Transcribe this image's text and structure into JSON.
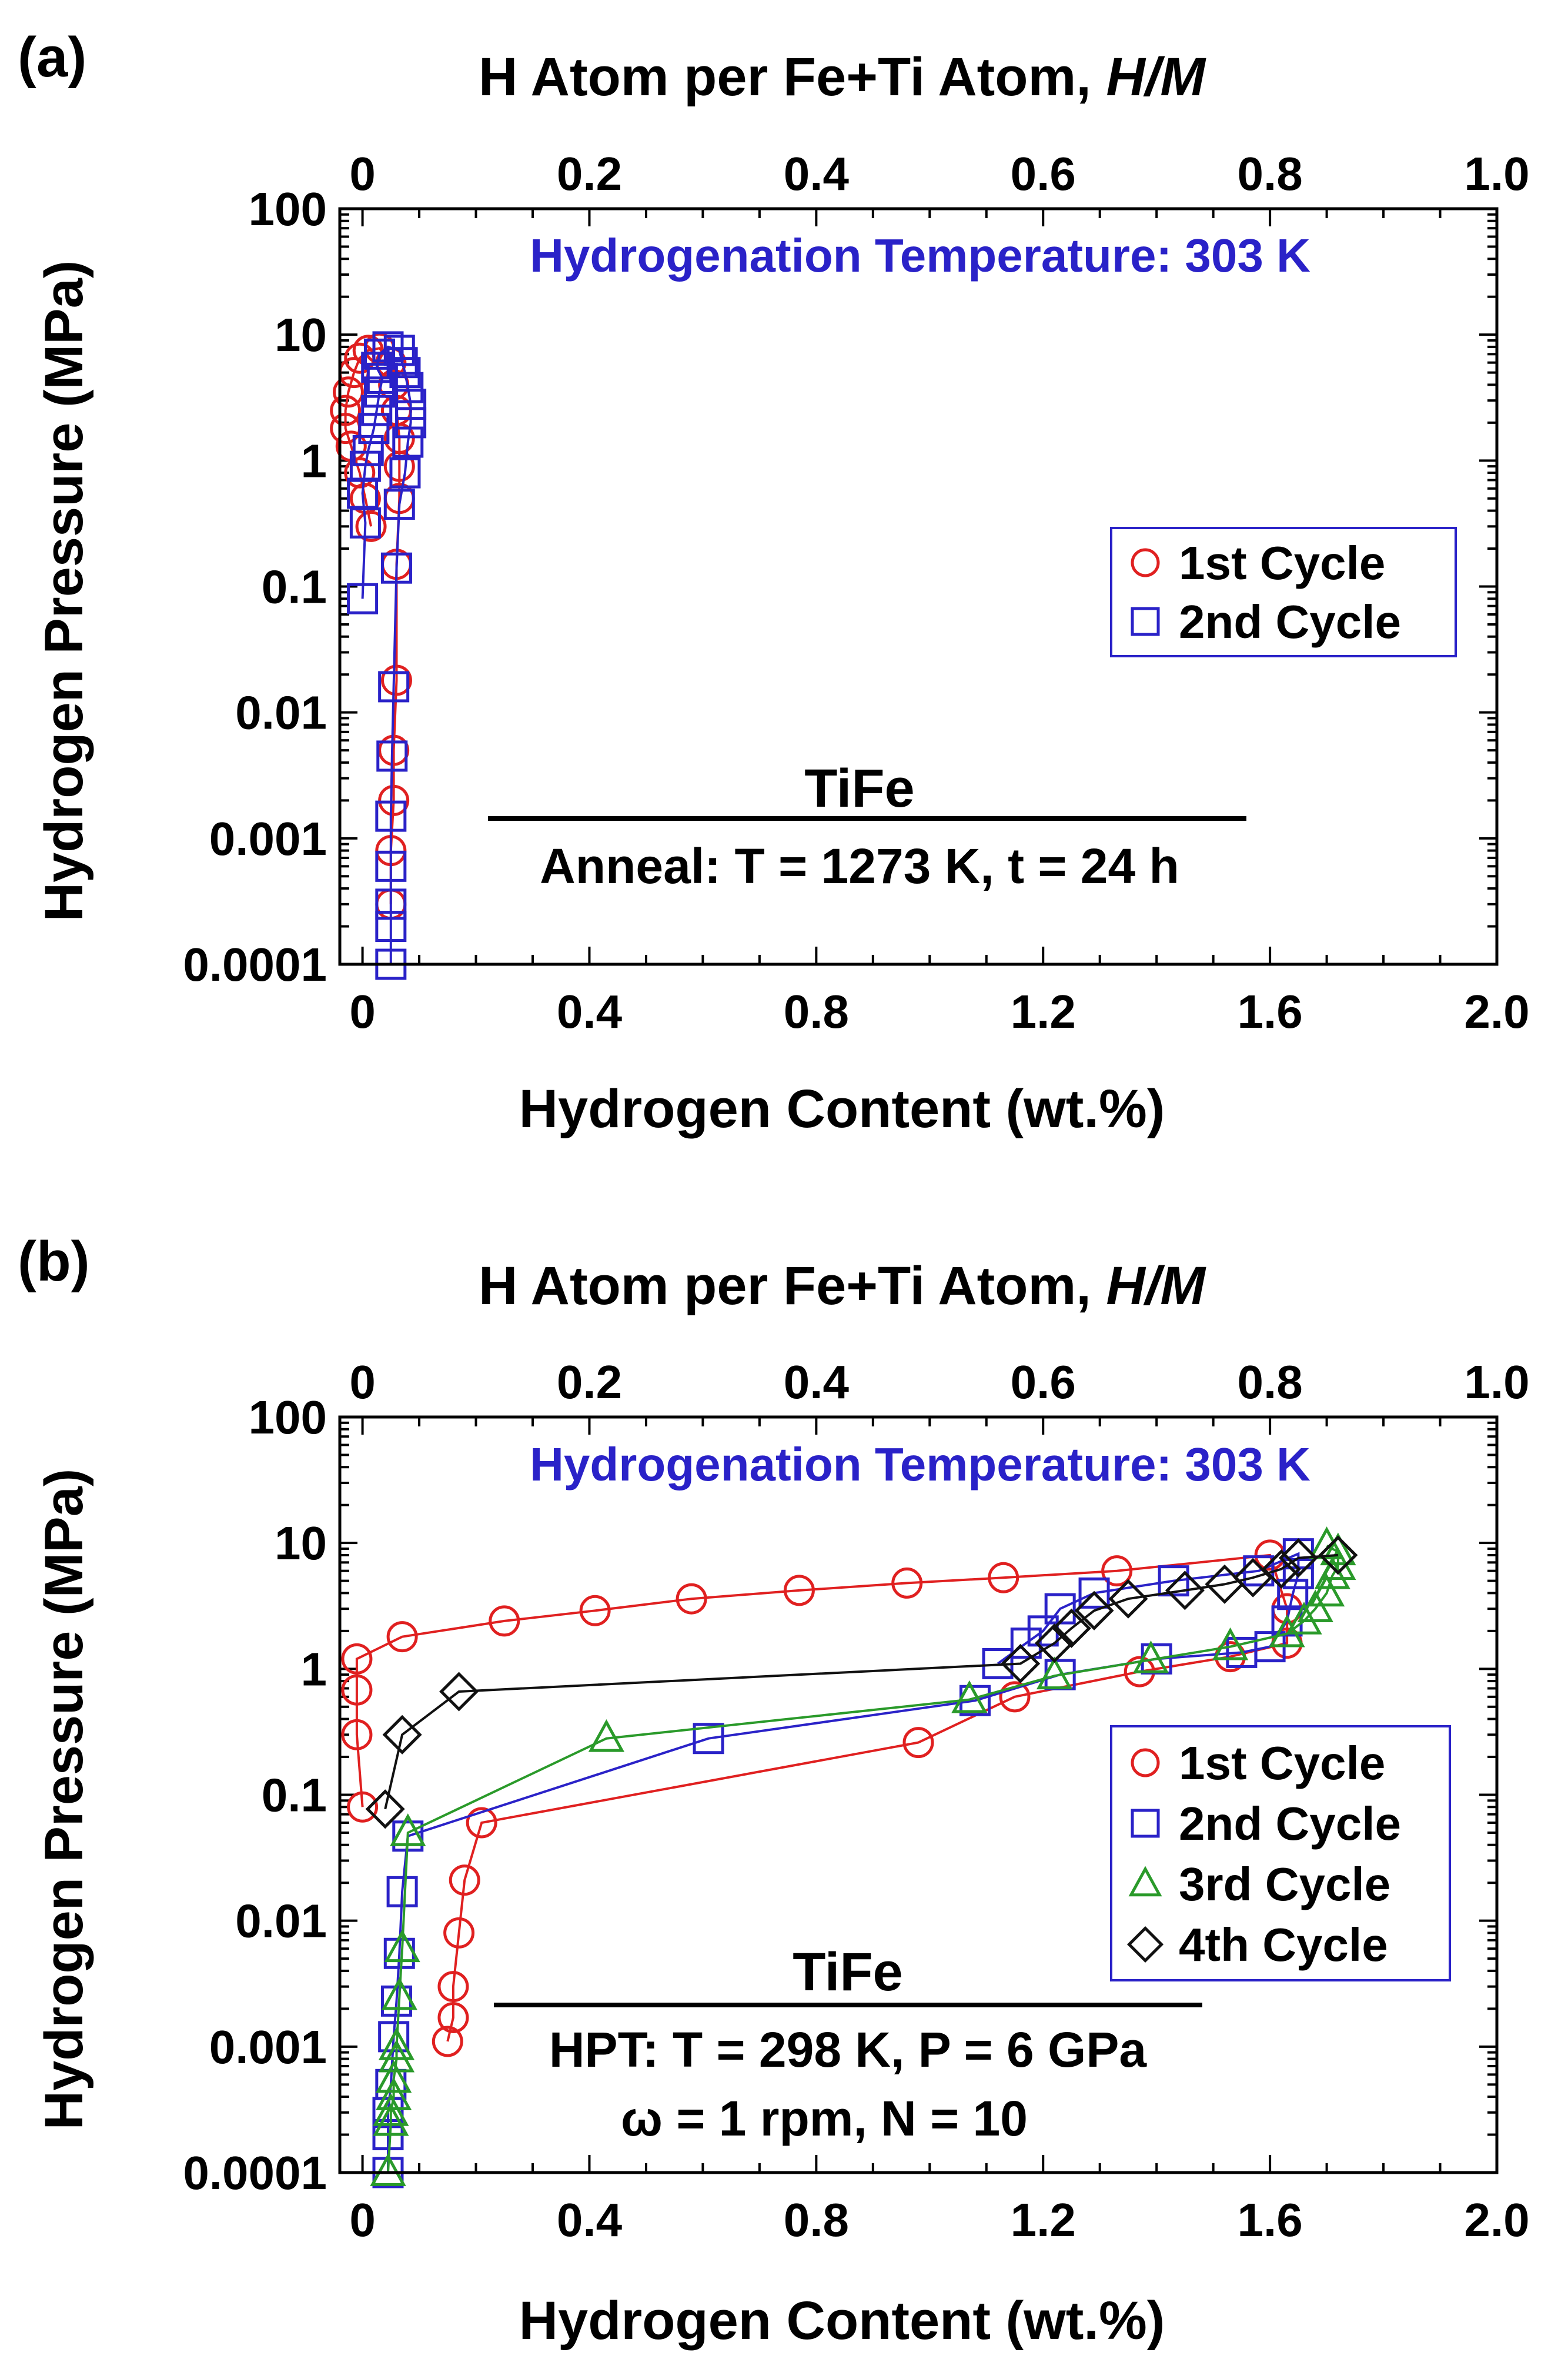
{
  "colors": {
    "cycle1": "#e02020",
    "cycle2": "#2a22c8",
    "cycle3": "#2a9a2a",
    "cycle4": "#111111",
    "temp_label": "#2a22c8"
  },
  "chart_data": [
    {
      "panel": "(a)",
      "type": "scatter",
      "title": "",
      "xlabel": "Hydrogen Content (wt.%)",
      "x2label": "H Atom per Fe+Ti Atom, H/M",
      "x2label_plain": "H Atom per Fe+Ti Atom, ",
      "x2label_italic": "H/M",
      "ylabel": "Hydrogen Pressure (MPa)",
      "xlim": [
        -0.04,
        2.0
      ],
      "x2lim": [
        -0.02,
        1.0
      ],
      "ylim": [
        0.0001,
        100
      ],
      "yscale": "log",
      "xticks": [
        "0",
        "0.4",
        "0.8",
        "1.2",
        "1.6",
        "2.0"
      ],
      "x2ticks": [
        "0",
        "0.2",
        "0.4",
        "0.6",
        "0.8",
        "1.0"
      ],
      "yticks": [
        "100",
        "10",
        "1",
        "0.1",
        "0.01",
        "0.001",
        "0.0001"
      ],
      "temperature_label": "Hydrogenation Temperature: 303 K",
      "legend": [
        "1st Cycle",
        "2nd Cycle"
      ],
      "legend_position": "right",
      "sample": "TiFe",
      "conditions": [
        "Anneal: T = 1273 K, t = 24 h"
      ],
      "series": [
        {
          "name": "1st Cycle",
          "marker": "circle",
          "color_key": "cycle1",
          "points": [
            [
              0.05,
              0.0003
            ],
            [
              0.05,
              0.0008
            ],
            [
              0.055,
              0.002
            ],
            [
              0.055,
              0.005
            ],
            [
              0.06,
              0.018
            ],
            [
              0.06,
              0.15
            ],
            [
              0.065,
              0.5
            ],
            [
              0.065,
              0.9
            ],
            [
              0.065,
              1.5
            ],
            [
              0.06,
              2.5
            ],
            [
              0.055,
              4
            ],
            [
              0.05,
              6
            ],
            [
              0.03,
              7.8
            ],
            [
              0.01,
              7.5
            ],
            [
              -0.005,
              6.5
            ],
            [
              -0.015,
              5
            ],
            [
              -0.025,
              3.5
            ],
            [
              -0.03,
              2.5
            ],
            [
              -0.03,
              1.8
            ],
            [
              -0.02,
              1.3
            ],
            [
              -0.005,
              0.8
            ],
            [
              0.005,
              0.5
            ],
            [
              0.015,
              0.3
            ]
          ]
        },
        {
          "name": "2nd Cycle",
          "marker": "square",
          "color_key": "cycle2",
          "points": [
            [
              0.05,
              0.0001
            ],
            [
              0.05,
              0.0002
            ],
            [
              0.05,
              0.0003
            ],
            [
              0.05,
              0.0006
            ],
            [
              0.05,
              0.0015
            ],
            [
              0.052,
              0.0045
            ],
            [
              0.055,
              0.016
            ],
            [
              0.06,
              0.14
            ],
            [
              0.065,
              0.45
            ],
            [
              0.075,
              0.8
            ],
            [
              0.08,
              1.4
            ],
            [
              0.085,
              2
            ],
            [
              0.085,
              2.8
            ],
            [
              0.08,
              3.8
            ],
            [
              0.075,
              5
            ],
            [
              0.07,
              6
            ],
            [
              0.065,
              7.5
            ],
            [
              0.045,
              8
            ],
            [
              0.03,
              7
            ],
            [
              0.025,
              5.5
            ],
            [
              0.035,
              4.5
            ],
            [
              0.03,
              3.5
            ],
            [
              0.025,
              2.5
            ],
            [
              0.02,
              1.8
            ],
            [
              0.01,
              1.2
            ],
            [
              0.005,
              0.9
            ],
            [
              0.0,
              0.55
            ],
            [
              0.005,
              0.32
            ],
            [
              0.0,
              0.08
            ]
          ]
        }
      ]
    },
    {
      "panel": "(b)",
      "type": "scatter",
      "title": "",
      "xlabel": "Hydrogen Content (wt.%)",
      "x2label": "H Atom per Fe+Ti Atom, H/M",
      "x2label_plain": "H Atom per Fe+Ti Atom, ",
      "x2label_italic": "H/M",
      "ylabel": "Hydrogen Pressure (MPa)",
      "xlim": [
        -0.04,
        2.0
      ],
      "x2lim": [
        -0.02,
        1.0
      ],
      "ylim": [
        0.0001,
        100
      ],
      "yscale": "log",
      "xticks": [
        "0",
        "0.4",
        "0.8",
        "1.2",
        "1.6",
        "2.0"
      ],
      "x2ticks": [
        "0",
        "0.2",
        "0.4",
        "0.6",
        "0.8",
        "1.0"
      ],
      "yticks": [
        "100",
        "10",
        "1",
        "0.1",
        "0.01",
        "0.001",
        "0.0001"
      ],
      "temperature_label": "Hydrogenation Temperature: 303 K",
      "legend": [
        "1st Cycle",
        "2nd Cycle",
        "3rd Cycle",
        "4th Cycle"
      ],
      "legend_position": "right",
      "sample": "TiFe",
      "conditions": [
        "HPT: T = 298 K, P = 6 GPa",
        "ω = 1 rpm, N = 10"
      ],
      "series": [
        {
          "name": "1st Cycle",
          "marker": "circle",
          "color_key": "cycle1",
          "points": [
            [
              0.15,
              0.0011
            ],
            [
              0.16,
              0.0017
            ],
            [
              0.16,
              0.003
            ],
            [
              0.17,
              0.008
            ],
            [
              0.18,
              0.021
            ],
            [
              0.21,
              0.06
            ],
            [
              0.98,
              0.26
            ],
            [
              1.15,
              0.6
            ],
            [
              1.37,
              0.95
            ],
            [
              1.53,
              1.25
            ],
            [
              1.63,
              1.6
            ],
            [
              1.63,
              3
            ],
            [
              1.6,
              8
            ],
            [
              1.33,
              6
            ],
            [
              1.13,
              5.3
            ],
            [
              0.96,
              4.8
            ],
            [
              0.77,
              4.2
            ],
            [
              0.58,
              3.6
            ],
            [
              0.41,
              2.9
            ],
            [
              0.25,
              2.4
            ],
            [
              0.07,
              1.8
            ],
            [
              -0.01,
              1.2
            ],
            [
              -0.01,
              0.68
            ],
            [
              -0.01,
              0.3
            ],
            [
              0.0,
              0.08
            ]
          ]
        },
        {
          "name": "2nd Cycle",
          "marker": "square",
          "color_key": "cycle2",
          "points": [
            [
              0.045,
              0.0001
            ],
            [
              0.045,
              0.0002
            ],
            [
              0.045,
              0.0003
            ],
            [
              0.05,
              0.0005
            ],
            [
              0.055,
              0.0012
            ],
            [
              0.06,
              0.0023
            ],
            [
              0.065,
              0.0055
            ],
            [
              0.07,
              0.017
            ],
            [
              0.08,
              0.047
            ],
            [
              0.61,
              0.28
            ],
            [
              1.08,
              0.56
            ],
            [
              1.23,
              0.9
            ],
            [
              1.4,
              1.2
            ],
            [
              1.55,
              1.35
            ],
            [
              1.6,
              1.5
            ],
            [
              1.63,
              2.4
            ],
            [
              1.64,
              3.9
            ],
            [
              1.65,
              5.7
            ],
            [
              1.65,
              8.2
            ],
            [
              1.58,
              6
            ],
            [
              1.43,
              5
            ],
            [
              1.29,
              4
            ],
            [
              1.23,
              3
            ],
            [
              1.2,
              2
            ],
            [
              1.17,
              1.6
            ],
            [
              1.12,
              1.1
            ]
          ]
        },
        {
          "name": "3rd Cycle",
          "marker": "triangle",
          "color_key": "cycle3",
          "points": [
            [
              0.045,
              0.0001
            ],
            [
              0.05,
              0.00025
            ],
            [
              0.05,
              0.0003
            ],
            [
              0.055,
              0.0004
            ],
            [
              0.055,
              0.00055
            ],
            [
              0.06,
              0.0008
            ],
            [
              0.06,
              0.001
            ],
            [
              0.065,
              0.0025
            ],
            [
              0.07,
              0.006
            ],
            [
              0.08,
              0.05
            ],
            [
              0.43,
              0.28
            ],
            [
              1.07,
              0.57
            ],
            [
              1.22,
              0.88
            ],
            [
              1.39,
              1.18
            ],
            [
              1.53,
              1.5
            ],
            [
              1.63,
              1.9
            ],
            [
              1.66,
              2.4
            ],
            [
              1.68,
              3
            ],
            [
              1.7,
              4
            ],
            [
              1.71,
              5.5
            ],
            [
              1.72,
              6.5
            ],
            [
              1.72,
              8.5
            ],
            [
              1.7,
              9.5
            ]
          ]
        },
        {
          "name": "4th Cycle",
          "marker": "diamond",
          "color_key": "cycle4",
          "points": [
            [
              0.04,
              0.077
            ],
            [
              0.07,
              0.3
            ],
            [
              0.17,
              0.66
            ],
            [
              1.16,
              1.1
            ],
            [
              1.22,
              1.6
            ],
            [
              1.25,
              2.1
            ],
            [
              1.29,
              2.9
            ],
            [
              1.35,
              3.6
            ],
            [
              1.45,
              4.2
            ],
            [
              1.52,
              4.7
            ],
            [
              1.57,
              5.3
            ],
            [
              1.62,
              6.2
            ],
            [
              1.65,
              7.6
            ],
            [
              1.72,
              8
            ]
          ]
        }
      ]
    }
  ]
}
